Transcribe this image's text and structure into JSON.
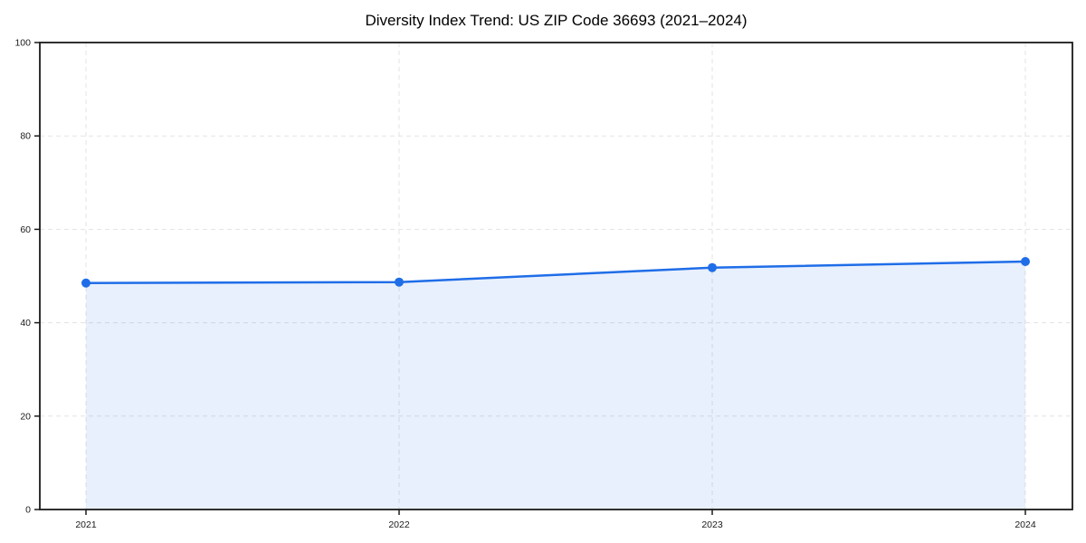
{
  "title": "Diversity Index Trend: US ZIP Code 36693 (2021–2024)",
  "chart_data": {
    "type": "line",
    "title": "Diversity Index Trend: US ZIP Code 36693 (2021–2024)",
    "x": [
      "2021",
      "2022",
      "2023",
      "2024"
    ],
    "series": [
      {
        "name": "Diversity Index",
        "values": [
          48.5,
          48.7,
          51.8,
          53.1
        ]
      }
    ],
    "xlabel": "",
    "ylabel": "",
    "ylim": [
      0,
      100
    ],
    "yticks": [
      0,
      20,
      40,
      60,
      80,
      100
    ],
    "grid": "dashed-both",
    "legend": "none",
    "area_fill": true,
    "marker": "circle",
    "colors": {
      "line": "#1f6de8",
      "marker": "#1f6de8",
      "fill": "rgba(30,110,235,0.10)",
      "grid": "#e3e3e3",
      "spine": "#1a1a1a",
      "text": "#1a1a1a",
      "background": "#ffffff"
    }
  }
}
